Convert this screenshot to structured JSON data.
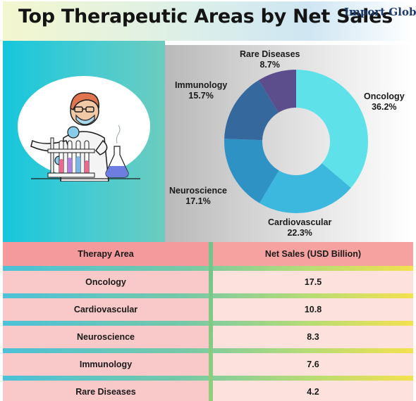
{
  "header": {
    "title": "Top Therapeutic Areas by Net Sales",
    "logo_text": "Import Globals"
  },
  "chart_data": {
    "type": "pie",
    "donut": true,
    "categories": [
      "Oncology",
      "Cardiovascular",
      "Neuroscience",
      "Immunology",
      "Rare Diseases"
    ],
    "values": [
      36.2,
      22.3,
      17.1,
      15.7,
      8.7
    ],
    "value_labels": [
      "36.2%",
      "22.3%",
      "17.1%",
      "15.7%",
      "8.7%"
    ],
    "colors": [
      "#5ee1e8",
      "#3cb7dd",
      "#2e92c4",
      "#35699e",
      "#5c4d8c"
    ]
  },
  "table": {
    "headers": [
      "Therapy Area",
      "Net Sales (USD Billion)"
    ],
    "rows": [
      {
        "area": "Oncology",
        "sales": "17.5"
      },
      {
        "area": "Cardiovascular",
        "sales": "10.8"
      },
      {
        "area": "Neuroscience",
        "sales": "8.3"
      },
      {
        "area": "Immunology",
        "sales": "7.6"
      },
      {
        "area": "Rare Diseases",
        "sales": "4.2"
      }
    ]
  }
}
